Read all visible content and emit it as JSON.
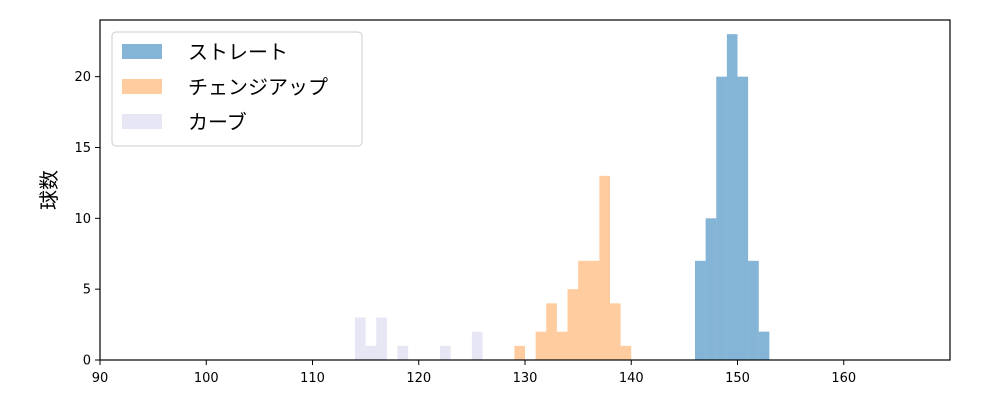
{
  "chart_data": {
    "type": "bar",
    "title": "",
    "xlabel": "",
    "ylabel": "球数",
    "xlim": [
      90,
      170
    ],
    "ylim": [
      0,
      24
    ],
    "xticks": [
      90,
      100,
      110,
      120,
      130,
      140,
      150,
      160
    ],
    "yticks": [
      0,
      5,
      10,
      15,
      20
    ],
    "grid": false,
    "legend_position": "top-left",
    "bin_width": 1,
    "series": [
      {
        "name": "ストレート",
        "color": "#1f77b4",
        "opacity": 0.55,
        "bins": [
          {
            "x": 146,
            "count": 7
          },
          {
            "x": 147,
            "count": 10
          },
          {
            "x": 148,
            "count": 20
          },
          {
            "x": 149,
            "count": 23
          },
          {
            "x": 150,
            "count": 20
          },
          {
            "x": 151,
            "count": 7
          },
          {
            "x": 152,
            "count": 2
          }
        ]
      },
      {
        "name": "チェンジアップ",
        "color": "#ff7f0e",
        "opacity": 0.4,
        "bins": [
          {
            "x": 129,
            "count": 1
          },
          {
            "x": 131,
            "count": 2
          },
          {
            "x": 132,
            "count": 4
          },
          {
            "x": 133,
            "count": 2
          },
          {
            "x": 134,
            "count": 5
          },
          {
            "x": 135,
            "count": 7
          },
          {
            "x": 136,
            "count": 7
          },
          {
            "x": 137,
            "count": 13
          },
          {
            "x": 138,
            "count": 4
          },
          {
            "x": 139,
            "count": 1
          }
        ]
      },
      {
        "name": "カーブ",
        "color": "#c7c7e6",
        "opacity": 0.45,
        "bins": [
          {
            "x": 114,
            "count": 3
          },
          {
            "x": 115,
            "count": 1
          },
          {
            "x": 116,
            "count": 3
          },
          {
            "x": 118,
            "count": 1
          },
          {
            "x": 122,
            "count": 1
          },
          {
            "x": 125,
            "count": 2
          }
        ]
      }
    ]
  }
}
